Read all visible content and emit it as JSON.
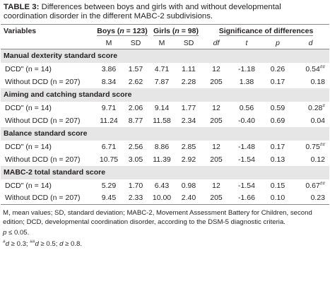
{
  "title": {
    "label": "TABLE 3:",
    "text": "Differences between boys and girls with and without developmental coordination disorder in the different MABC-2 subdivisions."
  },
  "header": {
    "variables": "Variables",
    "boys": "Boys (n = 123)",
    "girls": "Girls (n = 98)",
    "significance": "Significance of differences",
    "sub": [
      "M",
      "SD",
      "M",
      "SD",
      "df",
      "t",
      "p",
      "d"
    ]
  },
  "sections": [
    {
      "name": "Manual dexterity standard score",
      "rows": [
        {
          "label": "DCD\" (n = 14)",
          "values": [
            "3.86",
            "1.57",
            "4.71",
            "1.11",
            "12",
            "-1.18",
            "0.26",
            "0.54"
          ],
          "sup": "##"
        },
        {
          "label": "Without DCD (n = 207)",
          "values": [
            "8.34",
            "2.62",
            "7.87",
            "2.28",
            "205",
            "1.38",
            "0.17",
            "0.18"
          ],
          "sup": ""
        }
      ]
    },
    {
      "name": "Aiming and catching standard score",
      "rows": [
        {
          "label": "DCD\" (n = 14)",
          "values": [
            "9.71",
            "2.06",
            "9.14",
            "1.77",
            "12",
            "0.56",
            "0.59",
            "0.28"
          ],
          "sup": "#"
        },
        {
          "label": "Without DCD (n = 207)",
          "values": [
            "11.24",
            "8.77",
            "11.58",
            "2.34",
            "205",
            "-0.40",
            "0.69",
            "0.04"
          ],
          "sup": ""
        }
      ]
    },
    {
      "name": "Balance standard score",
      "rows": [
        {
          "label": "DCD\" (n = 14)",
          "values": [
            "6.71",
            "2.56",
            "8.86",
            "2.85",
            "12",
            "-1.48",
            "0.17",
            "0.75"
          ],
          "sup": "##"
        },
        {
          "label": "Without DCD (n = 207)",
          "values": [
            "10.75",
            "3.05",
            "11.39",
            "2.92",
            "205",
            "-1.54",
            "0.13",
            "0.12"
          ],
          "sup": ""
        }
      ]
    },
    {
      "name": "MABC-2 total standard score",
      "rows": [
        {
          "label": "DCD\" (n = 14)",
          "values": [
            "5.29",
            "1.70",
            "6.43",
            "0.98",
            "12",
            "-1.54",
            "0.15",
            "0.67"
          ],
          "sup": "##"
        },
        {
          "label": "Without DCD (n = 207)",
          "values": [
            "9.45",
            "2.33",
            "10.00",
            "2.40",
            "205",
            "-1.66",
            "0.10",
            "0.23"
          ],
          "sup": ""
        }
      ]
    }
  ],
  "notes": {
    "abbrev": "M, mean values; SD, standard deviation; MABC-2, Movement Assessment Battery for Children, second edition; DCD, developmental coordination disorder, according to the DSM-5 diagnostic criteria.",
    "p_note": "p ≤ 0.05.",
    "effect_note": "#d ≥ 0.3; ##d ≥ 0.5; d ≥ 0.8."
  }
}
